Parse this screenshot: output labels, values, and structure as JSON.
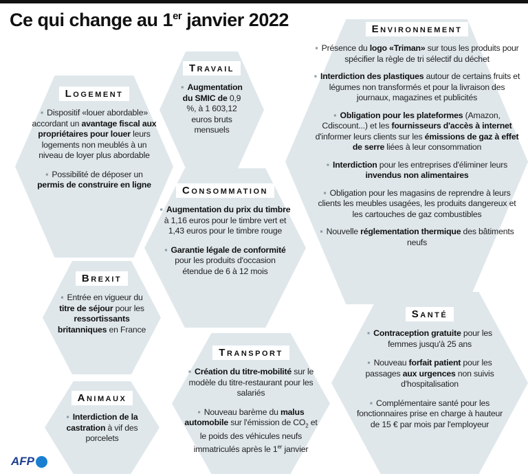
{
  "title": [
    {
      "text": "Ce qui change au 1"
    },
    {
      "text": "er",
      "style": "sup"
    },
    {
      "text": " janvier 2022"
    }
  ],
  "sections": [
    {
      "heading": "Logement",
      "items": [
        [
          {
            "text": "Dispositif «louer abordable» accordant un "
          },
          {
            "text": "avantage fiscal aux propriétaires pour louer",
            "style": "bold"
          },
          {
            "text": " leurs logements non meublés à un niveau de loyer plus abordable"
          }
        ],
        [
          {
            "text": "Possibilité de déposer un "
          },
          {
            "text": "permis de construire en ligne",
            "style": "bold"
          }
        ]
      ]
    },
    {
      "heading": "Travail",
      "items": [
        [
          {
            "text": "Augmentation du SMIC de",
            "style": "bold"
          },
          {
            "text": " 0,9 %, à 1 603,12 euros bruts mensuels"
          }
        ]
      ]
    },
    {
      "heading": "Environnement",
      "items": [
        [
          {
            "text": "Présence du "
          },
          {
            "text": "logo «Triman»",
            "style": "bold"
          },
          {
            "text": " sur tous les produits pour spécifier la règle de tri sélectif du déchet"
          }
        ],
        [
          {
            "text": "Interdiction des plastiques",
            "style": "bold"
          },
          {
            "text": " autour de certains fruits et légumes non transformés et pour la livraison des journaux, magazines et publicités"
          }
        ],
        [
          {
            "text": "Obligation pour les plateformes",
            "style": "bold"
          },
          {
            "text": " (Amazon, Cdiscount...) et les "
          },
          {
            "text": "fournisseurs d'accès à internet",
            "style": "bold"
          },
          {
            "text": " d'informer leurs clients sur les "
          },
          {
            "text": "émissions de gaz à effet de serre",
            "style": "bold"
          },
          {
            "text": " liées à leur consommation"
          }
        ],
        [
          {
            "text": "Interdiction",
            "style": "bold"
          },
          {
            "text": " pour les entreprises d'éliminer leurs "
          },
          {
            "text": "invendus non alimentaires",
            "style": "bold"
          }
        ],
        [
          {
            "text": "Obligation pour les magasins de reprendre à leurs clients les meubles usagées, les produits dangereux et les cartouches de gaz combustibles"
          }
        ],
        [
          {
            "text": "Nouvelle "
          },
          {
            "text": "réglementation thermique",
            "style": "bold"
          },
          {
            "text": " des bâtiments neufs"
          }
        ]
      ]
    },
    {
      "heading": "Consommation",
      "items": [
        [
          {
            "text": "Augmentation du prix du timbre",
            "style": "bold"
          },
          {
            "text": " à 1,16 euros pour le timbre vert et 1,43 euros pour le timbre rouge"
          }
        ],
        [
          {
            "text": "Garantie légale de conformité",
            "style": "bold"
          },
          {
            "text": " pour les produits d'occasion étendue de 6 à 12 mois"
          }
        ]
      ]
    },
    {
      "heading": "Brexit",
      "items": [
        [
          {
            "text": "Entrée en vigueur du "
          },
          {
            "text": "titre de séjour",
            "style": "bold"
          },
          {
            "text": " pour les "
          },
          {
            "text": "ressortissants britanniques",
            "style": "bold"
          },
          {
            "text": " en France"
          }
        ]
      ]
    },
    {
      "heading": "Santé",
      "items": [
        [
          {
            "text": "Contraception gratuite",
            "style": "bold"
          },
          {
            "text": " pour les femmes jusqu'à 25 ans"
          }
        ],
        [
          {
            "text": "Nouveau "
          },
          {
            "text": "forfait patient",
            "style": "bold"
          },
          {
            "text": " pour les passages "
          },
          {
            "text": "aux urgences",
            "style": "bold"
          },
          {
            "text": " non suivis d'hospitalisation"
          }
        ],
        [
          {
            "text": "Complémentaire santé pour les fonctionnaires prise en charge à hauteur de 15 € par mois par l'employeur"
          }
        ]
      ]
    },
    {
      "heading": "Transport",
      "items": [
        [
          {
            "text": "Création du titre-mobilité",
            "style": "bold"
          },
          {
            "text": " sur le modèle du titre-restaurant pour les salariés"
          }
        ],
        [
          {
            "text": "Nouveau barème du "
          },
          {
            "text": "malus automobile",
            "style": "bold"
          },
          {
            "text": " sur l'émission de CO"
          },
          {
            "text": "2",
            "style": "sub"
          },
          {
            "text": " et le poids des véhicules neufs immatriculés après le 1"
          },
          {
            "text": "er",
            "style": "sup"
          },
          {
            "text": " janvier"
          }
        ]
      ]
    },
    {
      "heading": "Animaux",
      "items": [
        [
          {
            "text": "Interdiction de la castration",
            "style": "bold"
          },
          {
            "text": " à vif des porcelets"
          }
        ]
      ]
    }
  ],
  "footer": "AFP"
}
